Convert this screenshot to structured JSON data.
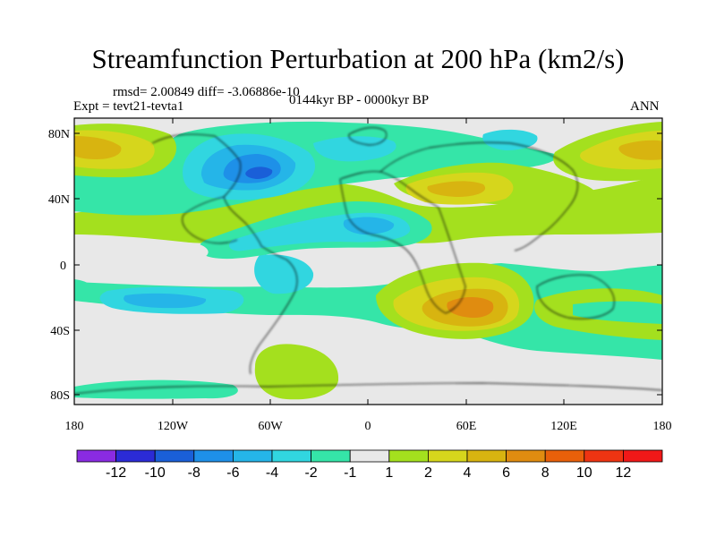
{
  "title": "Streamfunction Perturbation at 200 hPa (km2/s)",
  "stats": "rmsd= 2.00849 diff= -3.06886e-10",
  "experiment": "Expt = tevt21-tevta1",
  "period": "0144kyr BP - 0000kyr BP",
  "season": "ANN",
  "lat_ticks": [
    "80N",
    "40N",
    "0",
    "40S",
    "80S"
  ],
  "lon_ticks": [
    "180",
    "120W",
    "60W",
    "0",
    "60E",
    "120E",
    "180"
  ],
  "colorbar": {
    "colors": [
      "#8a2be2",
      "#2b2bd6",
      "#1a5fd8",
      "#1e90e8",
      "#25b5e8",
      "#31d6e0",
      "#35e5a8",
      "#e8e8e8",
      "#a4e01e",
      "#d6d61c",
      "#d8b410",
      "#e08c10",
      "#e8600a",
      "#ee3412",
      "#f01818"
    ],
    "labels": [
      "-12",
      "-10",
      "-8",
      "-6",
      "-4",
      "-2",
      "-1",
      "1",
      "2",
      "4",
      "6",
      "8",
      "10",
      "12"
    ]
  }
}
